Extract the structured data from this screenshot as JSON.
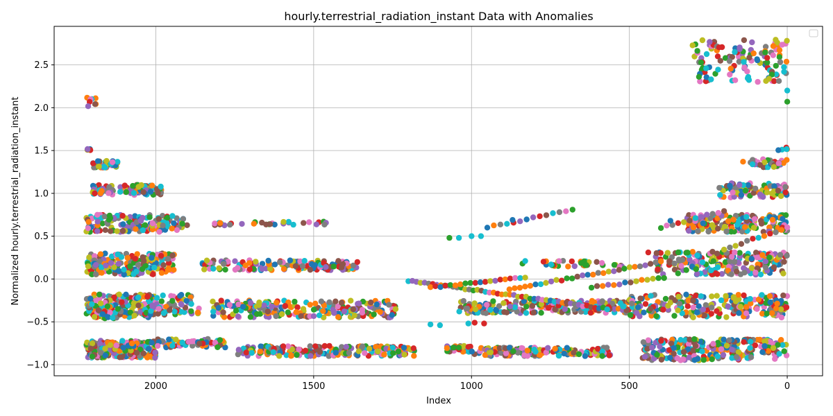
{
  "chart_data": {
    "type": "scatter",
    "title": "hourly.terrestrial_radiation_instant Data with Anomalies",
    "xlabel": "Index",
    "ylabel": "Normalized hourly.terrestrial_radiation_instant",
    "xlim": [
      2322,
      -112
    ],
    "ylim": [
      -1.13,
      2.95
    ],
    "x_inverted": true,
    "grid": true,
    "legend": "top-right (empty)",
    "xticks": [
      2000,
      1500,
      1000,
      500,
      0
    ],
    "xtick_labels": [
      "2000",
      "1500",
      "1000",
      "500",
      "0"
    ],
    "yticks": [
      -1.0,
      -0.5,
      0.0,
      0.5,
      1.0,
      1.5,
      2.0,
      2.5
    ],
    "ytick_labels": [
      "−1.0",
      "−0.5",
      "0.0",
      "0.5",
      "1.0",
      "1.5",
      "2.0",
      "2.5"
    ],
    "palette": [
      "#1f77b4",
      "#ff7f0e",
      "#2ca02c",
      "#d62728",
      "#9467bd",
      "#8c564b",
      "#e377c2",
      "#7f7f7f",
      "#bcbd22",
      "#17becf"
    ],
    "clusters": [
      {
        "x": [
          2000,
          2220
        ],
        "y": [
          -0.92,
          -0.72
        ],
        "n": 260
      },
      {
        "x": [
          1780,
          2000
        ],
        "y": [
          -0.8,
          -0.7
        ],
        "n": 60
      },
      {
        "x": [
          1180,
          1740
        ],
        "y": [
          -0.9,
          -0.78
        ],
        "n": 220
      },
      {
        "x": [
          1000,
          1080
        ],
        "y": [
          -0.85,
          -0.78
        ],
        "n": 30
      },
      {
        "x": [
          560,
          1000
        ],
        "y": [
          -0.9,
          -0.8
        ],
        "n": 150
      },
      {
        "x": [
          0,
          460
        ],
        "y": [
          -0.95,
          -0.7
        ],
        "n": 260
      },
      {
        "x": [
          2000,
          2220
        ],
        "y": [
          -0.46,
          -0.18
        ],
        "n": 220
      },
      {
        "x": [
          1860,
          2000
        ],
        "y": [
          -0.42,
          -0.18
        ],
        "n": 50
      },
      {
        "x": [
          1240,
          1820
        ],
        "y": [
          -0.45,
          -0.25
        ],
        "n": 230
      },
      {
        "x": [
          500,
          1040
        ],
        "y": [
          -0.4,
          -0.25
        ],
        "n": 200
      },
      {
        "x": [
          0,
          500
        ],
        "y": [
          -0.45,
          -0.18
        ],
        "n": 240
      },
      {
        "x": [
          1940,
          2220
        ],
        "y": [
          0.05,
          0.3
        ],
        "n": 200
      },
      {
        "x": [
          1360,
          1860
        ],
        "y": [
          0.1,
          0.22
        ],
        "n": 150
      },
      {
        "x": [
          520,
          840
        ],
        "y": [
          0.14,
          0.22
        ],
        "n": 35
      },
      {
        "x": [
          0,
          420
        ],
        "y": [
          0.05,
          0.32
        ],
        "n": 220
      },
      {
        "x": [
          1900,
          2220
        ],
        "y": [
          0.55,
          0.75
        ],
        "n": 140
      },
      {
        "x": [
          1460,
          1820
        ],
        "y": [
          0.62,
          0.67
        ],
        "n": 30
      },
      {
        "x": [
          0,
          320
        ],
        "y": [
          0.55,
          0.75
        ],
        "n": 160
      },
      {
        "x": [
          1980,
          2200
        ],
        "y": [
          0.98,
          1.1
        ],
        "n": 100
      },
      {
        "x": [
          0,
          220
        ],
        "y": [
          0.95,
          1.12
        ],
        "n": 90
      },
      {
        "x": [
          2120,
          2200
        ],
        "y": [
          1.3,
          1.38
        ],
        "n": 40
      },
      {
        "x": [
          0,
          120
        ],
        "y": [
          1.3,
          1.4
        ],
        "n": 40
      },
      {
        "x": [
          2190,
          2220
        ],
        "y": [
          1.5,
          1.52
        ],
        "n": 5
      },
      {
        "x": [
          0,
          30
        ],
        "y": [
          1.5,
          1.54
        ],
        "n": 5
      },
      {
        "x": [
          2190,
          2220
        ],
        "y": [
          2.0,
          2.12
        ],
        "n": 8
      },
      {
        "x": [
          0,
          300
        ],
        "y": [
          2.3,
          2.8
        ],
        "n": 120
      }
    ],
    "trends": [
      {
        "x": [
          1200,
          570
        ],
        "y": [
          -0.02,
          -0.35
        ],
        "n": 50
      },
      {
        "x": [
          1130,
          830
        ],
        "y": [
          -0.1,
          0.02
        ],
        "n": 20
      },
      {
        "x": [
          950,
          680
        ],
        "y": [
          0.6,
          0.81
        ],
        "n": 14
      },
      {
        "x": [
          880,
          400
        ],
        "y": [
          -0.12,
          0.2
        ],
        "n": 30
      },
      {
        "x": [
          620,
          390
        ],
        "y": [
          -0.1,
          0.02
        ],
        "n": 14
      },
      {
        "x": [
          400,
          200
        ],
        "y": [
          0.6,
          0.8
        ],
        "n": 12
      },
      {
        "x": [
          200,
          0
        ],
        "y": [
          0.35,
          0.6
        ],
        "n": 12
      }
    ],
    "isolated": [
      {
        "x": 1070,
        "y": 0.48,
        "color": "#2ca02c"
      },
      {
        "x": 1040,
        "y": 0.48,
        "color": "#17becf"
      },
      {
        "x": 1000,
        "y": 0.5,
        "color": "#17becf"
      },
      {
        "x": 970,
        "y": 0.5,
        "color": "#17becf"
      },
      {
        "x": 870,
        "y": 0.69,
        "color": "#1f77b4"
      },
      {
        "x": 830,
        "y": 0.21,
        "color": "#17becf"
      },
      {
        "x": 1130,
        "y": -0.53,
        "color": "#17becf"
      },
      {
        "x": 1100,
        "y": -0.54,
        "color": "#17becf"
      },
      {
        "x": 1010,
        "y": -0.52,
        "color": "#17becf"
      },
      {
        "x": 990,
        "y": -0.51,
        "color": "#d62728"
      },
      {
        "x": 960,
        "y": -0.52,
        "color": "#d62728"
      },
      {
        "x": 140,
        "y": 1.37,
        "color": "#ff7f0e"
      },
      {
        "x": 370,
        "y": 0.68,
        "color": "#1f77b4"
      },
      {
        "x": 440,
        "y": 0.31,
        "color": "#d62728"
      },
      {
        "x": 0,
        "y": 2.07,
        "color": "#2ca02c"
      },
      {
        "x": 0,
        "y": 2.2,
        "color": "#17becf"
      },
      {
        "x": 10,
        "y": 2.42,
        "color": "#17becf"
      }
    ]
  }
}
